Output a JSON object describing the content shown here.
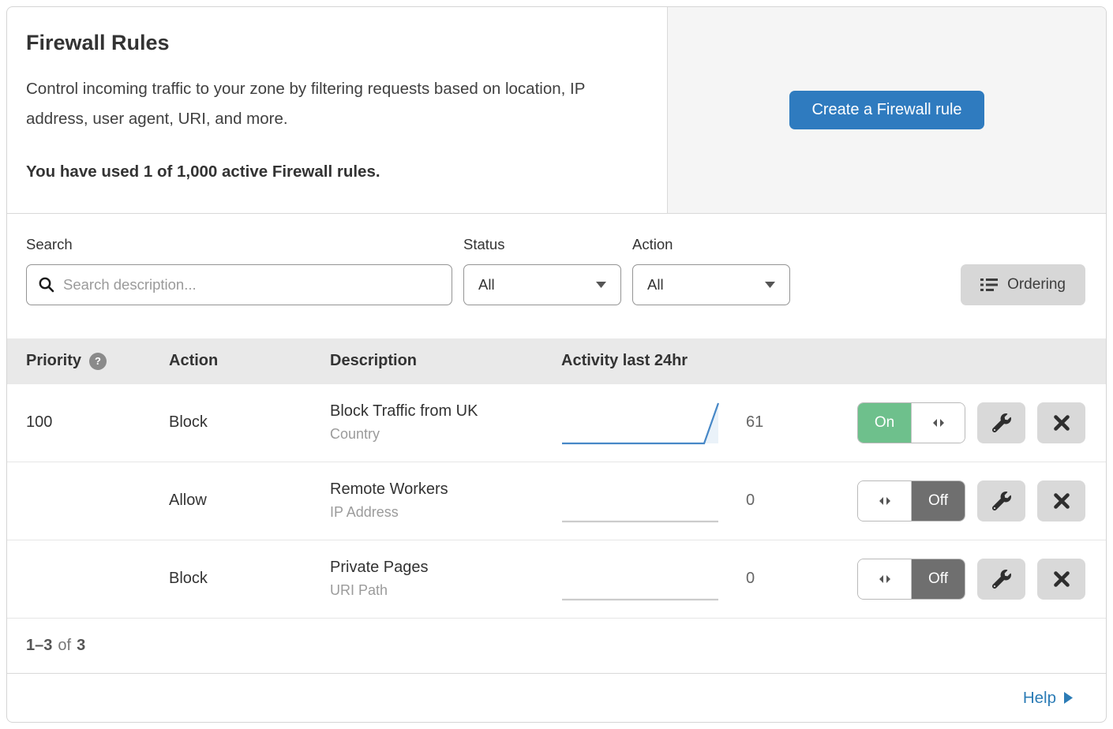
{
  "header": {
    "title": "Firewall Rules",
    "description": "Control incoming traffic to your zone by filtering requests based on location, IP address, user agent, URI, and more.",
    "usage_note": "You have used 1 of 1,000 active Firewall rules.",
    "create_button_label": "Create a Firewall rule"
  },
  "filters": {
    "search_label": "Search",
    "search_placeholder": "Search description...",
    "search_value": "",
    "status_label": "Status",
    "status_value": "All",
    "action_label": "Action",
    "action_value": "All",
    "ordering_button_label": "Ordering"
  },
  "table": {
    "columns": {
      "priority": "Priority",
      "priority_help_glyph": "?",
      "action": "Action",
      "description": "Description",
      "activity": "Activity last 24hr"
    },
    "rows": [
      {
        "priority": "100",
        "action": "Block",
        "description": "Block Traffic from UK",
        "match_type": "Country",
        "activity_count": "61",
        "enabled": true,
        "toggle_state": "On",
        "spark": [
          0,
          0,
          0,
          0,
          0,
          0,
          0,
          0,
          0,
          0,
          0,
          61
        ]
      },
      {
        "priority": "",
        "action": "Allow",
        "description": "Remote Workers",
        "match_type": "IP Address",
        "activity_count": "0",
        "enabled": false,
        "toggle_state": "Off",
        "spark": [
          0,
          0,
          0,
          0,
          0,
          0,
          0,
          0,
          0,
          0,
          0,
          0
        ]
      },
      {
        "priority": "",
        "action": "Block",
        "description": "Private Pages",
        "match_type": "URI Path",
        "activity_count": "0",
        "enabled": false,
        "toggle_state": "Off",
        "spark": [
          0,
          0,
          0,
          0,
          0,
          0,
          0,
          0,
          0,
          0,
          0,
          0
        ]
      }
    ]
  },
  "footer": {
    "range": "1–3",
    "of_text": "of",
    "total": "3",
    "help_label": "Help"
  },
  "colors": {
    "accent_blue": "#2f7bbf",
    "toggle_green": "#6ec08c",
    "toggle_off_gray": "#6f6f6f",
    "spark_line": "#4788c7",
    "spark_fill": "#eaf2f9",
    "spark_flat": "#cccccc",
    "link_blue": "#2c7cb6"
  }
}
